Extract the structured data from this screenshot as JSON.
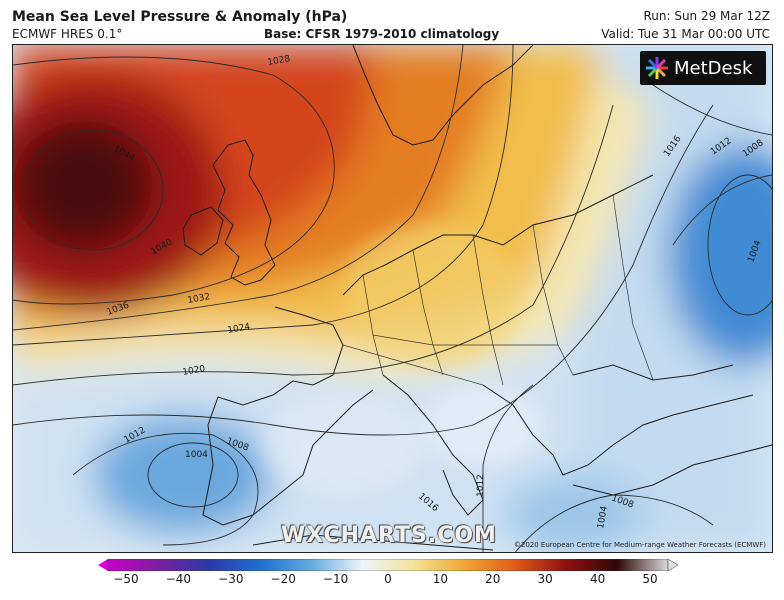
{
  "header": {
    "title": "Mean Sea Level Pressure & Anomaly (hPa)",
    "model": "ECMWF HRES 0.1°",
    "base": "Base: CFSR 1979-2010 climatology",
    "run": "Run: Sun 29 Mar 12Z",
    "valid": "Valid: Tue 31 Mar 00:00 UTC"
  },
  "logo": {
    "text": "MetDesk"
  },
  "watermark": "WXCHARTS.COM",
  "copyright": "©2020 European Centre for Medium-range Weather Forecasts (ECMWF)",
  "isobar_labels": [
    "1028",
    "1044",
    "1040",
    "1036",
    "1032",
    "1024",
    "1020",
    "1016",
    "1012",
    "1008",
    "1004",
    "1012",
    "1008",
    "1016",
    "1012",
    "1008",
    "1004",
    "1004"
  ],
  "colorbar": {
    "ticks": [
      "−50",
      "−40",
      "−30",
      "−20",
      "−10",
      "0",
      "10",
      "20",
      "30",
      "40",
      "50"
    ],
    "stops": [
      "#c800c8",
      "#7a1fa0",
      "#2a3aa8",
      "#1f6fd0",
      "#64acdf",
      "#eef3fa",
      "#f3e39a",
      "#f1a732",
      "#e15a1a",
      "#8e1010",
      "#300808",
      "#d8d8d8"
    ]
  },
  "anomaly_colors": {
    "very_high": "#8c0f0f",
    "high": "#d84a14",
    "moderate": "#ee9a2b",
    "low": "#f2d37a",
    "neutral": "#eef3fa",
    "negative": "#b9d6ee",
    "strong_negative": "#4f97d8"
  }
}
